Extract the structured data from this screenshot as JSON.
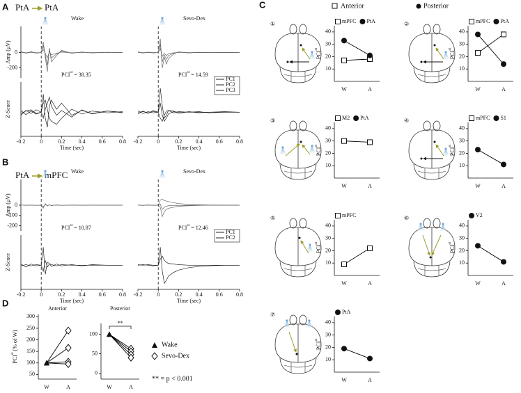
{
  "figure": {
    "panel_labels": [
      "A",
      "B",
      "C",
      "D"
    ],
    "a_source": "PtA",
    "a_target": "PtA",
    "b_source": "PtA",
    "b_target": "mPFC",
    "c_anterior": "Anterior",
    "c_posterior": "Posterior",
    "d_legend": [
      "Wake",
      "Sevo-Dex"
    ],
    "d_note": "** = p < 0.001"
  },
  "chart_data": [
    {
      "type": "line",
      "title": "Wake",
      "ylabel": "Amp (μV)",
      "xlim": [
        -0.2,
        0.8
      ],
      "ylim": [
        -330,
        340
      ],
      "yticks": [
        0,
        -200
      ],
      "onset": 0,
      "annotation": "PCI",
      "annotation_sup": "st",
      "annotation_suffix": "= 38.35",
      "x": [
        -0.2,
        -0.15,
        -0.1,
        -0.05,
        0,
        0.02,
        0.04,
        0.06,
        0.08,
        0.1,
        0.15,
        0.2,
        0.3,
        0.4,
        0.5,
        0.65,
        0.8
      ],
      "series": [
        {
          "color": "#666",
          "values": [
            15,
            -10,
            12,
            -8,
            0,
            140,
            -60,
            -250,
            60,
            -120,
            -40,
            30,
            -10,
            8,
            -5,
            4,
            0
          ]
        },
        {
          "color": "#666",
          "values": [
            8,
            -5,
            6,
            -4,
            0,
            90,
            -30,
            -160,
            30,
            -70,
            -20,
            15,
            -6,
            4,
            -3,
            2,
            0
          ]
        },
        {
          "color": "#666",
          "values": [
            4,
            -3,
            3,
            -2,
            0,
            40,
            -10,
            -70,
            10,
            -30,
            -8,
            6,
            -3,
            2,
            -1,
            1,
            0
          ]
        }
      ]
    },
    {
      "type": "line",
      "ylabel": "Z-Score",
      "xlabel": "Time (sec)",
      "xlim": [
        -0.2,
        0.8
      ],
      "ylim": [
        -4,
        5
      ],
      "xticks": [
        -0.2,
        0,
        0.2,
        0.4,
        0.6,
        0.8
      ],
      "onset": 0,
      "x": [
        -0.2,
        -0.15,
        -0.1,
        -0.05,
        0,
        0.02,
        0.04,
        0.06,
        0.08,
        0.1,
        0.15,
        0.2,
        0.3,
        0.4,
        0.5,
        0.65,
        0.8
      ],
      "series": [
        {
          "color": "#222",
          "values": [
            -0.5,
            0.3,
            -0.2,
            0.4,
            0,
            3,
            -1,
            -2.5,
            1,
            2,
            0.5,
            1.5,
            -0.5,
            0.3,
            -0.2,
            0.2,
            0
          ]
        },
        {
          "color": "#222",
          "values": [
            0.3,
            -0.4,
            0.2,
            -0.3,
            0,
            1.5,
            2,
            0.5,
            -1,
            -1.5,
            -2,
            -1,
            0.5,
            -0.3,
            0.2,
            -0.1,
            0.1
          ]
        },
        {
          "color": "#222",
          "values": [
            -0.2,
            0.2,
            0.4,
            -0.2,
            0,
            -1,
            0.5,
            1.5,
            2.5,
            1,
            -0.5,
            0.3,
            -0.8,
            0.4,
            -0.3,
            0.2,
            -0.1
          ]
        }
      ]
    },
    {
      "type": "line",
      "title": "Sevo-Dex",
      "xlim": [
        -0.2,
        0.8
      ],
      "ylim": [
        -330,
        340
      ],
      "onset": 0,
      "annotation": "PCI",
      "annotation_sup": "st",
      "annotation_suffix": "= 14.59",
      "x": [
        -0.2,
        -0.15,
        -0.1,
        -0.05,
        0,
        0.02,
        0.04,
        0.06,
        0.08,
        0.1,
        0.15,
        0.2,
        0.3,
        0.4,
        0.5,
        0.65,
        0.8
      ],
      "series": [
        {
          "color": "#666",
          "values": [
            10,
            -8,
            6,
            -5,
            0,
            180,
            -200,
            -60,
            -150,
            -80,
            -20,
            10,
            -5,
            4,
            -2,
            2,
            0
          ]
        },
        {
          "color": "#666",
          "values": [
            6,
            -4,
            3,
            -3,
            0,
            110,
            -120,
            -30,
            -90,
            -40,
            -10,
            5,
            -3,
            2,
            -1,
            1,
            0
          ]
        },
        {
          "color": "#666",
          "values": [
            3,
            -2,
            2,
            -1,
            0,
            50,
            -50,
            -10,
            -40,
            -15,
            -4,
            2,
            -1,
            1,
            0,
            0,
            0
          ]
        }
      ]
    },
    {
      "type": "line",
      "xlabel": "Time (sec)",
      "xlim": [
        -0.2,
        0.8
      ],
      "ylim": [
        -4,
        5
      ],
      "xticks": [
        -0.2,
        0,
        0.2,
        0.4,
        0.6,
        0.8
      ],
      "onset": 0,
      "x": [
        -0.2,
        -0.15,
        -0.1,
        -0.05,
        0,
        0.02,
        0.04,
        0.06,
        0.08,
        0.1,
        0.15,
        0.2,
        0.3,
        0.4,
        0.5,
        0.65,
        0.8
      ],
      "series": [
        {
          "name": "PC1",
          "color": "#222",
          "values": [
            -0.3,
            0.2,
            -0.2,
            0.3,
            0,
            4,
            1,
            -1,
            -0.5,
            0.3,
            0.2,
            -0.2,
            0.1,
            -0.1,
            0,
            0.1,
            0
          ]
        },
        {
          "name": "PC2",
          "color": "#222",
          "values": [
            0.2,
            -0.2,
            0.1,
            -0.1,
            0,
            -1,
            -1.5,
            -0.5,
            0.2,
            0.3,
            -0.1,
            0.1,
            0,
            0.1,
            -0.1,
            0,
            0
          ]
        },
        {
          "name": "PC3",
          "color": "#222",
          "values": [
            0,
            0.1,
            -0.1,
            0.1,
            0,
            1.5,
            -0.5,
            -1.5,
            -1,
            -0.3,
            0.1,
            0,
            0,
            0,
            0,
            0,
            0
          ]
        }
      ]
    },
    {
      "type": "line",
      "title": "Wake",
      "ylabel": "Amp (μV)",
      "xlim": [
        -0.2,
        0.8
      ],
      "ylim": [
        -250,
        250
      ],
      "yticks": [
        0,
        -100,
        -200
      ],
      "onset": 0,
      "annotation": "PCI",
      "annotation_sup": "st",
      "annotation_suffix": "= 10.87",
      "x": [
        -0.2,
        -0.15,
        -0.1,
        -0.05,
        0,
        0.02,
        0.04,
        0.06,
        0.08,
        0.1,
        0.15,
        0.2,
        0.3,
        0.4,
        0.5,
        0.65,
        0.8
      ],
      "series": [
        {
          "color": "#666",
          "values": [
            3,
            -2,
            2,
            -2,
            0,
            -30,
            15,
            -8,
            5,
            -4,
            3,
            -2,
            2,
            -1,
            1,
            0,
            0
          ]
        },
        {
          "color": "#666",
          "values": [
            2,
            -1,
            1,
            -1,
            0,
            -15,
            8,
            -4,
            3,
            -2,
            1,
            -1,
            1,
            0,
            0,
            0,
            0
          ]
        }
      ]
    },
    {
      "type": "line",
      "ylabel": "Z-Score",
      "xlabel": "Time (sec)",
      "xlim": [
        -0.2,
        0.8
      ],
      "ylim": [
        -4,
        5
      ],
      "xticks": [
        -0.2,
        0,
        0.2,
        0.4,
        0.6,
        0.8
      ],
      "onset": 0,
      "x": [
        -0.2,
        -0.15,
        -0.1,
        -0.05,
        0,
        0.02,
        0.04,
        0.06,
        0.08,
        0.1,
        0.15,
        0.2,
        0.3,
        0.4,
        0.5,
        0.65,
        0.8
      ],
      "series": [
        {
          "color": "#222",
          "values": [
            0.2,
            -0.3,
            0.2,
            -0.1,
            0,
            3,
            -1.5,
            0.5,
            0.3,
            -0.2,
            0.2,
            -0.1,
            0.1,
            -0.1,
            0.1,
            0,
            0
          ]
        },
        {
          "color": "#222",
          "values": [
            -0.1,
            0.1,
            -0.1,
            0.1,
            0,
            -1,
            0.8,
            -0.3,
            0.2,
            0.1,
            -0.1,
            0.1,
            0,
            0,
            0,
            0,
            0
          ]
        }
      ]
    },
    {
      "type": "line",
      "title": "Sevo-Dex",
      "xlim": [
        -0.2,
        0.8
      ],
      "ylim": [
        -250,
        250
      ],
      "onset": 0,
      "annotation": "PCI",
      "annotation_sup": "st",
      "annotation_suffix": "= 12.46",
      "x": [
        -0.2,
        -0.15,
        -0.1,
        -0.05,
        0,
        0.02,
        0.04,
        0.06,
        0.08,
        0.1,
        0.15,
        0.2,
        0.3,
        0.4,
        0.5,
        0.65,
        0.8
      ],
      "series": [
        {
          "color": "#666",
          "values": [
            4,
            -3,
            3,
            -2,
            0,
            -20,
            -110,
            -60,
            -40,
            -30,
            -20,
            -10,
            -5,
            -2,
            0,
            0,
            0
          ]
        },
        {
          "color": "#666",
          "values": [
            2,
            -2,
            2,
            -1,
            0,
            50,
            60,
            45,
            40,
            35,
            25,
            15,
            8,
            4,
            2,
            1,
            0
          ]
        },
        {
          "color": "#666",
          "values": [
            1,
            -1,
            1,
            -1,
            0,
            10,
            -40,
            -20,
            -10,
            -5,
            -3,
            -2,
            -1,
            0,
            0,
            0,
            0
          ]
        }
      ]
    },
    {
      "type": "line",
      "xlabel": "Time (sec)",
      "xlim": [
        -0.2,
        0.8
      ],
      "ylim": [
        -4,
        5
      ],
      "xticks": [
        -0.2,
        0,
        0.2,
        0.4,
        0.6,
        0.8
      ],
      "onset": 0,
      "x": [
        -0.2,
        -0.15,
        -0.1,
        -0.05,
        0,
        0.02,
        0.04,
        0.06,
        0.08,
        0.1,
        0.15,
        0.2,
        0.3,
        0.4,
        0.5,
        0.65,
        0.8
      ],
      "series": [
        {
          "name": "PC1",
          "color": "#222",
          "values": [
            0,
            0.1,
            0,
            -0.1,
            0,
            3,
            -1,
            -3,
            -2.5,
            -1.8,
            -1.2,
            -0.8,
            -0.4,
            -0.2,
            -0.1,
            0,
            0
          ]
        },
        {
          "name": "PC2",
          "color": "#222",
          "values": [
            0.1,
            0,
            0.1,
            0,
            0,
            1,
            1.5,
            0.8,
            0.5,
            0.3,
            0.2,
            0.1,
            0,
            0,
            0,
            0,
            0
          ]
        }
      ]
    },
    {
      "type": "line",
      "panel": "①",
      "categories": [
        "W",
        "A"
      ],
      "ylabel": "PCI",
      "ylabel_sup": "st",
      "ylim": [
        0,
        45
      ],
      "yticks": [
        10,
        20,
        30,
        40
      ],
      "series": [
        {
          "name": "mPFC",
          "marker": "square",
          "color": "#000",
          "values": [
            17,
            18
          ]
        },
        {
          "name": "PtA",
          "marker": "circle",
          "color": "#000",
          "values": [
            33,
            21
          ]
        }
      ]
    },
    {
      "type": "line",
      "panel": "②",
      "categories": [
        "W",
        "A"
      ],
      "ylabel": "PCI",
      "ylabel_sup": "st",
      "ylim": [
        0,
        45
      ],
      "yticks": [
        10,
        20,
        30,
        40
      ],
      "series": [
        {
          "name": "mPFC",
          "marker": "square",
          "color": "#000",
          "values": [
            23,
            38
          ]
        },
        {
          "name": "PtA",
          "marker": "circle",
          "color": "#000",
          "values": [
            38,
            14
          ]
        }
      ]
    },
    {
      "type": "line",
      "panel": "③",
      "categories": [
        "W",
        "A"
      ],
      "ylabel": "PCI",
      "ylabel_sup": "st",
      "ylim": [
        0,
        45
      ],
      "yticks": [
        10,
        20,
        30,
        40
      ],
      "series": [
        {
          "name": "M2",
          "marker": "square",
          "color": "#000",
          "values": [
            30,
            29
          ]
        },
        {
          "name": "PtA",
          "marker": "circle",
          "color": "#000",
          "values": [
            null,
            null
          ]
        }
      ]
    },
    {
      "type": "line",
      "panel": "④",
      "categories": [
        "W",
        "A"
      ],
      "ylabel": "PCI",
      "ylabel_sup": "st",
      "ylim": [
        0,
        45
      ],
      "yticks": [
        10,
        20,
        30,
        40
      ],
      "series": [
        {
          "name": "mPFC",
          "marker": "square",
          "color": "#000",
          "values": [
            null,
            null
          ]
        },
        {
          "name": "S1",
          "marker": "circle",
          "color": "#000",
          "values": [
            23,
            11
          ]
        }
      ]
    },
    {
      "type": "line",
      "panel": "⑤",
      "categories": [
        "W",
        "A"
      ],
      "ylabel": "PCI",
      "ylabel_sup": "st",
      "ylim": [
        0,
        45
      ],
      "yticks": [
        10,
        20,
        30,
        40
      ],
      "series": [
        {
          "name": "mPFC",
          "marker": "square",
          "color": "#000",
          "values": [
            9,
            22
          ]
        }
      ]
    },
    {
      "type": "line",
      "panel": "⑥",
      "categories": [
        "W",
        "A"
      ],
      "ylabel": "PCI",
      "ylabel_sup": "st",
      "ylim": [
        0,
        45
      ],
      "yticks": [
        10,
        20,
        30,
        40
      ],
      "series": [
        {
          "name": "V2",
          "marker": "circle",
          "color": "#000",
          "values": [
            24,
            11
          ]
        }
      ]
    },
    {
      "type": "line",
      "panel": "⑦",
      "categories": [
        "W",
        "A"
      ],
      "ylabel": "PCI",
      "ylabel_sup": "st",
      "ylim": [
        0,
        45
      ],
      "yticks": [
        10,
        20,
        30,
        40
      ],
      "series": [
        {
          "name": "PtA",
          "marker": "circle",
          "color": "#000",
          "values": [
            19,
            11
          ]
        }
      ]
    },
    {
      "type": "line",
      "title": "Anterior",
      "categories": [
        "W",
        "A"
      ],
      "category_markers": [
        "triangle",
        "diamond"
      ],
      "ylabel": "PCI",
      "ylabel_sup": "st",
      "ylabel_suffix": "(% of W)",
      "ylim": [
        30,
        310
      ],
      "yticks": [
        50,
        100,
        150,
        200,
        250,
        300
      ],
      "series": [
        {
          "color": "#000",
          "values": [
            100,
            240
          ]
        },
        {
          "color": "#000",
          "values": [
            100,
            165
          ]
        },
        {
          "color": "#000",
          "values": [
            100,
            105
          ]
        },
        {
          "color": "#000",
          "values": [
            100,
            95
          ]
        }
      ]
    },
    {
      "type": "line",
      "title": "Posterior",
      "categories": [
        "W",
        "A"
      ],
      "category_markers": [
        "triangle",
        "diamond"
      ],
      "ylim": [
        -15,
        128
      ],
      "yticks": [
        0,
        50,
        100
      ],
      "significance": "**",
      "series": [
        {
          "color": "#000",
          "values": [
            100,
            63
          ]
        },
        {
          "color": "#000",
          "values": [
            100,
            56
          ]
        },
        {
          "color": "#000",
          "values": [
            100,
            48
          ]
        },
        {
          "color": "#000",
          "values": [
            100,
            40
          ]
        }
      ]
    }
  ]
}
